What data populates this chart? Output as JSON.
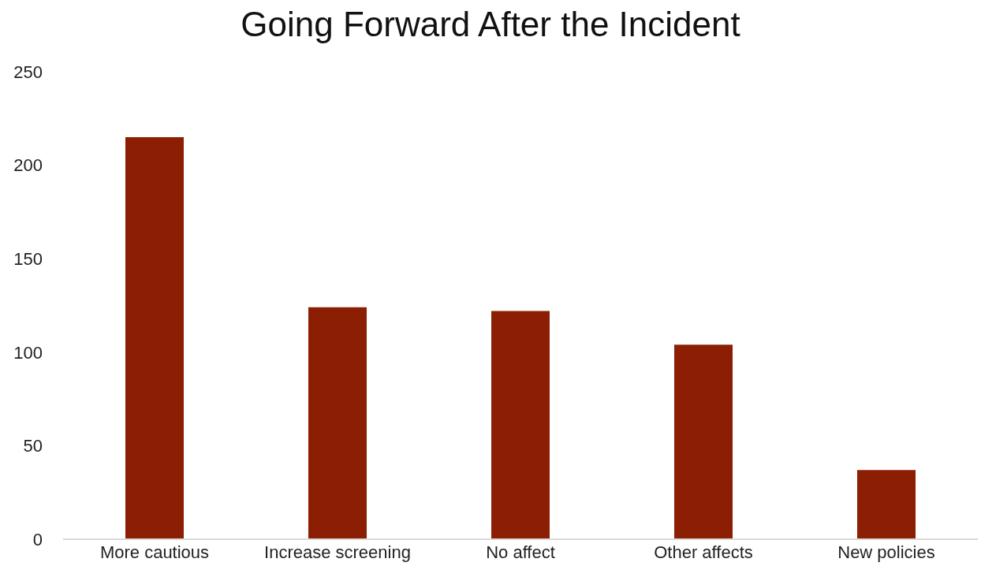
{
  "chart_data": {
    "type": "bar",
    "title": "Going Forward After the Incident",
    "categories": [
      "More cautious",
      "Increase screening",
      "No affect",
      "Other affects",
      "New policies"
    ],
    "values": [
      215,
      124,
      122,
      104,
      37
    ],
    "color": "#8b1e03",
    "ylim": [
      0,
      250
    ],
    "yticks": [
      0,
      50,
      100,
      150,
      200,
      250
    ]
  }
}
